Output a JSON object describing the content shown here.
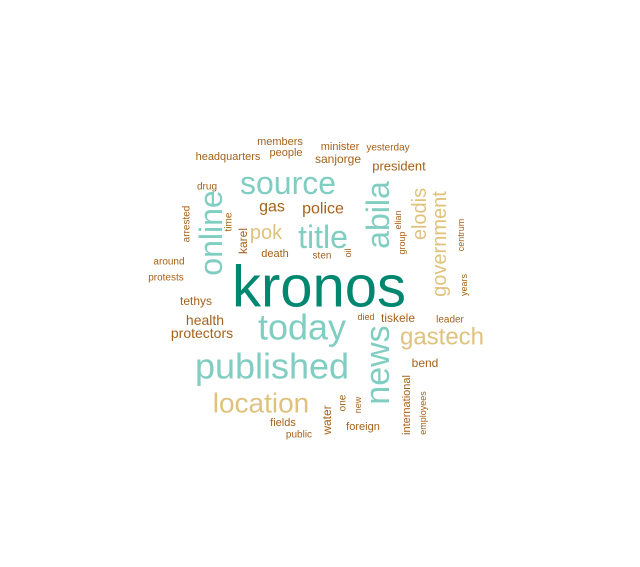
{
  "wordcloud": {
    "colors": {
      "dark_teal": "#01876F",
      "light_teal": "#80CDC1",
      "tan": "#DFC27D",
      "brown": "#A6611A"
    },
    "words": [
      {
        "text": "kronos",
        "color": "dark_teal",
        "rot": 0
      },
      {
        "text": "published",
        "color": "light_teal",
        "rot": 0
      },
      {
        "text": "today",
        "color": "light_teal",
        "rot": 0
      },
      {
        "text": "source",
        "color": "light_teal",
        "rot": 0
      },
      {
        "text": "news",
        "color": "light_teal",
        "rot": -90
      },
      {
        "text": "abila",
        "color": "light_teal",
        "rot": -90
      },
      {
        "text": "title",
        "color": "light_teal",
        "rot": 0
      },
      {
        "text": "online",
        "color": "light_teal",
        "rot": -90
      },
      {
        "text": "location",
        "color": "tan",
        "rot": 0
      },
      {
        "text": "gastech",
        "color": "tan",
        "rot": 0
      },
      {
        "text": "government",
        "color": "tan",
        "rot": -90
      },
      {
        "text": "elodis",
        "color": "tan",
        "rot": -90
      },
      {
        "text": "pok",
        "color": "tan",
        "rot": 0
      },
      {
        "text": "police",
        "color": "brown",
        "rot": 0
      },
      {
        "text": "gas",
        "color": "brown",
        "rot": 0
      },
      {
        "text": "health",
        "color": "brown",
        "rot": 0
      },
      {
        "text": "protectors",
        "color": "brown",
        "rot": 0
      },
      {
        "text": "president",
        "color": "brown",
        "rot": 0
      },
      {
        "text": "sanjorge",
        "color": "brown",
        "rot": 0
      },
      {
        "text": "tethys",
        "color": "brown",
        "rot": 0
      },
      {
        "text": "karel",
        "color": "brown",
        "rot": -90
      },
      {
        "text": "death",
        "color": "brown",
        "rot": 0
      },
      {
        "text": "tiskele",
        "color": "brown",
        "rot": 0
      },
      {
        "text": "bend",
        "color": "brown",
        "rot": 0
      },
      {
        "text": "water",
        "color": "brown",
        "rot": -90
      },
      {
        "text": "international",
        "color": "brown",
        "rot": -90
      },
      {
        "text": "members",
        "color": "brown",
        "rot": 0
      },
      {
        "text": "minister",
        "color": "brown",
        "rot": 0
      },
      {
        "text": "yesterday",
        "color": "brown",
        "rot": 0
      },
      {
        "text": "headquarters",
        "color": "brown",
        "rot": 0
      },
      {
        "text": "people",
        "color": "brown",
        "rot": 0
      },
      {
        "text": "drug",
        "color": "brown",
        "rot": 0
      },
      {
        "text": "arrested",
        "color": "brown",
        "rot": -90
      },
      {
        "text": "time",
        "color": "brown",
        "rot": -90
      },
      {
        "text": "around",
        "color": "brown",
        "rot": 0
      },
      {
        "text": "protests",
        "color": "brown",
        "rot": 0
      },
      {
        "text": "sten",
        "color": "brown",
        "rot": 0
      },
      {
        "text": "oil",
        "color": "brown",
        "rot": -90
      },
      {
        "text": "group",
        "color": "brown",
        "rot": -90
      },
      {
        "text": "elian",
        "color": "brown",
        "rot": -90
      },
      {
        "text": "centrum",
        "color": "brown",
        "rot": -90
      },
      {
        "text": "years",
        "color": "brown",
        "rot": -90
      },
      {
        "text": "died",
        "color": "brown",
        "rot": 0
      },
      {
        "text": "leader",
        "color": "brown",
        "rot": 0
      },
      {
        "text": "one",
        "color": "brown",
        "rot": -90
      },
      {
        "text": "new",
        "color": "brown",
        "rot": -90
      },
      {
        "text": "foreign",
        "color": "brown",
        "rot": 0
      },
      {
        "text": "employees",
        "color": "brown",
        "rot": -90
      },
      {
        "text": "fields",
        "color": "brown",
        "rot": 0
      },
      {
        "text": "public",
        "color": "brown",
        "rot": 0
      }
    ]
  }
}
